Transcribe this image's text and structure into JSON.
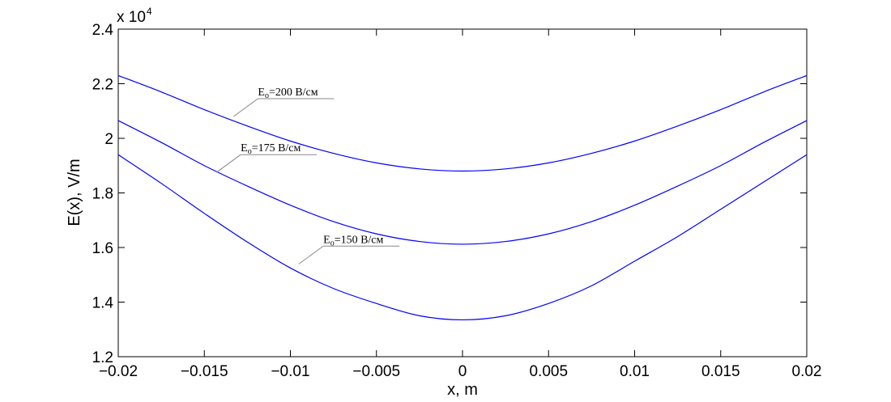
{
  "chart_data": {
    "type": "line",
    "xlabel": "x, m",
    "ylabel": "E(x), V/m",
    "y_multiplier": {
      "base": "x 10",
      "exponent": "4"
    },
    "xlim": [
      -0.02,
      0.02
    ],
    "ylim": [
      12000,
      24000
    ],
    "grid": false,
    "x_ticks": [
      -0.02,
      -0.015,
      -0.01,
      -0.005,
      0,
      0.005,
      0.01,
      0.015,
      0.02
    ],
    "x_tick_labels": [
      "−0.02",
      "−0.015",
      "−0.01",
      "−0.005",
      "0",
      "0.005",
      "0.01",
      "0.015",
      "0.02"
    ],
    "y_ticks": [
      12000,
      14000,
      16000,
      18000,
      20000,
      22000,
      24000
    ],
    "y_tick_labels": [
      "1.2",
      "1.4",
      "1.6",
      "1.8",
      "2",
      "2.2",
      "2.4"
    ],
    "color": "#0000ff",
    "series": [
      {
        "annotation": {
          "main": "E",
          "sub": "o",
          "rest": "=200 В/см",
          "x": -0.0133,
          "y": 20800
        },
        "x": [
          -0.02,
          -0.0175,
          -0.015,
          -0.0125,
          -0.01,
          -0.0075,
          -0.005,
          -0.0025,
          0,
          0.0025,
          0.005,
          0.0075,
          0.01,
          0.0125,
          0.015,
          0.0175,
          0.02
        ],
        "values": [
          22300,
          21700,
          21050,
          20450,
          19900,
          19450,
          19100,
          18880,
          18800,
          18880,
          19100,
          19450,
          19900,
          20450,
          21050,
          21700,
          22300
        ]
      },
      {
        "annotation": {
          "main": "E",
          "sub": "o",
          "rest": "=175 В/см",
          "x": -0.0143,
          "y": 18750
        },
        "x": [
          -0.02,
          -0.0175,
          -0.015,
          -0.0125,
          -0.01,
          -0.0075,
          -0.005,
          -0.0025,
          0,
          0.0025,
          0.005,
          0.0075,
          0.01,
          0.0125,
          0.015,
          0.0175,
          0.02
        ],
        "values": [
          20650,
          19850,
          19000,
          18250,
          17550,
          16950,
          16500,
          16220,
          16120,
          16220,
          16500,
          16950,
          17550,
          18250,
          19000,
          19850,
          20650
        ]
      },
      {
        "annotation": {
          "main": "E",
          "sub": "o",
          "rest": "=150 В/см",
          "x": -0.0095,
          "y": 15400
        },
        "x": [
          -0.02,
          -0.0175,
          -0.015,
          -0.0125,
          -0.01,
          -0.0075,
          -0.005,
          -0.0025,
          0,
          0.0025,
          0.005,
          0.0075,
          0.01,
          0.0125,
          0.015,
          0.0175,
          0.02
        ],
        "values": [
          19400,
          18350,
          17250,
          16200,
          15250,
          14500,
          13950,
          13500,
          13350,
          13500,
          13950,
          14600,
          15500,
          16400,
          17400,
          18400,
          19400
        ]
      }
    ]
  }
}
